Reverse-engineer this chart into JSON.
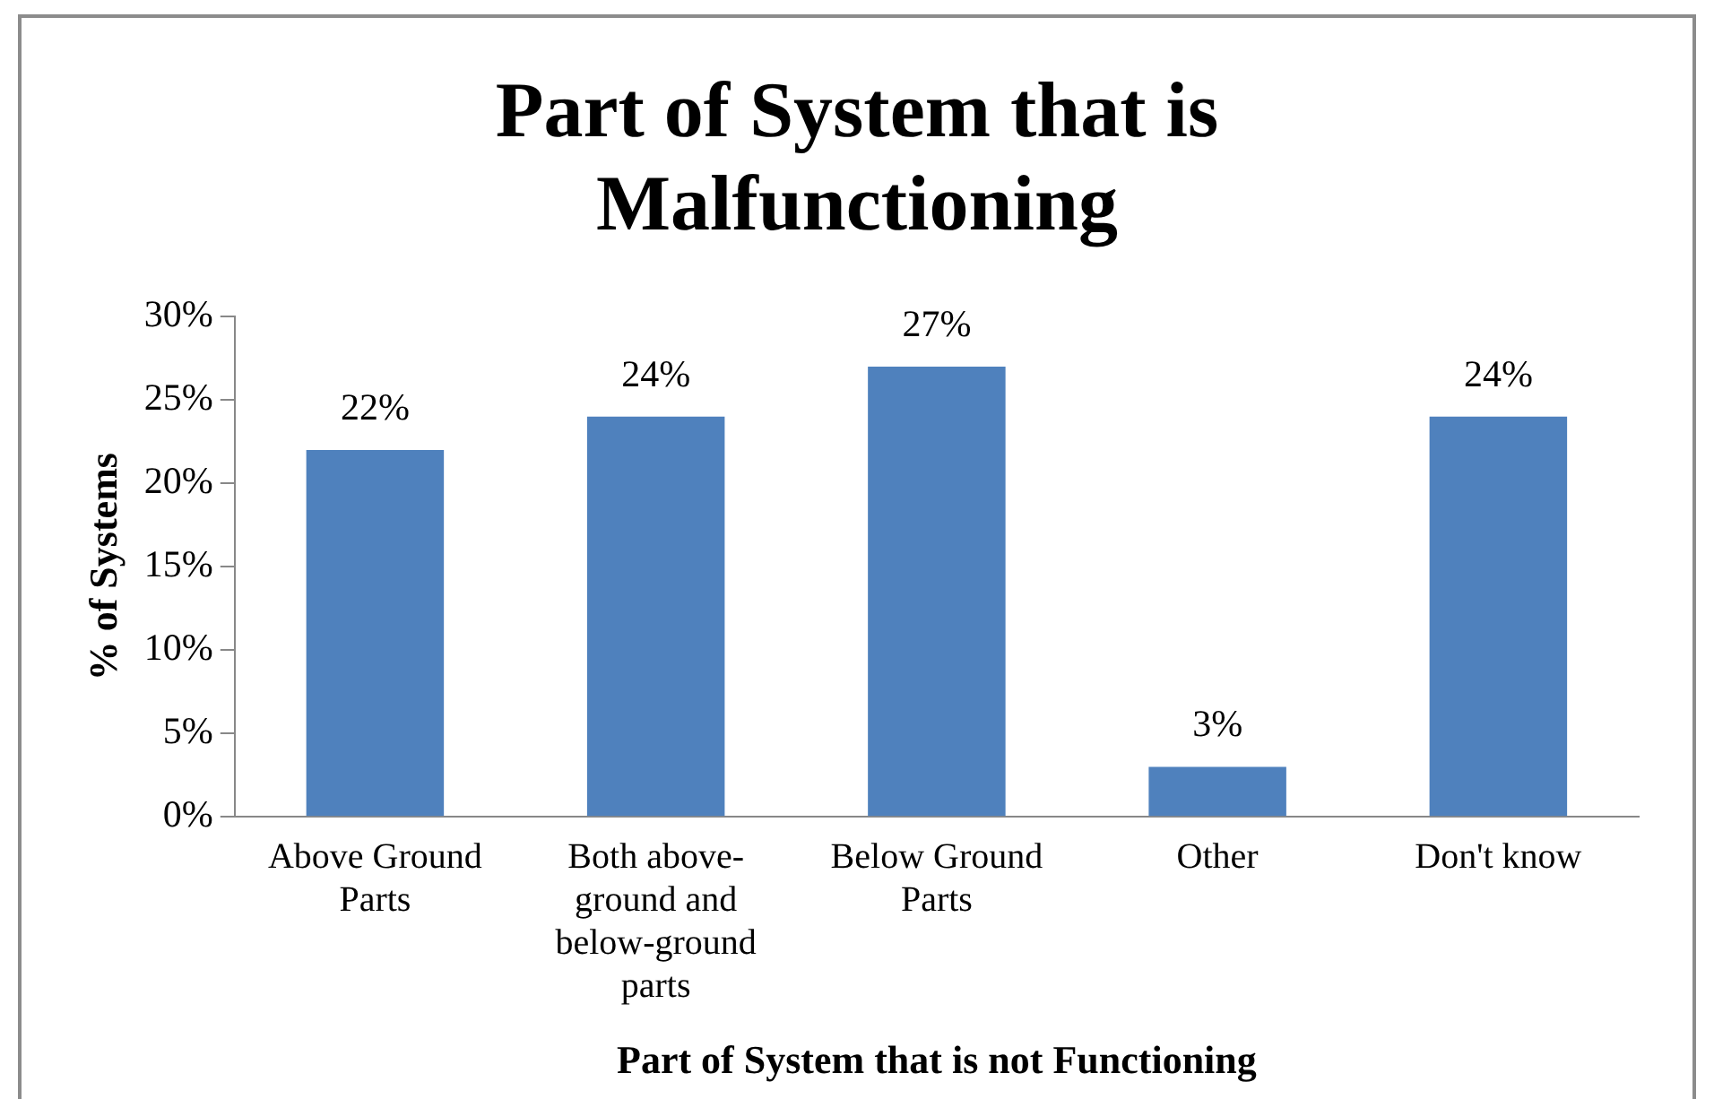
{
  "chart_data": {
    "type": "bar",
    "title": "Part of System that is Malfunctioning",
    "xlabel": "Part of System that is not Functioning",
    "ylabel": "% of Systems",
    "categories": [
      "Above Ground Parts",
      "Both above-ground and below-ground parts",
      "Below Ground Parts",
      "Other",
      "Don't know"
    ],
    "values": [
      22,
      24,
      27,
      3,
      24
    ],
    "color": "#4f81bd",
    "data_labels": true,
    "value_labels": [
      "22%",
      "24%",
      "27%",
      "3%",
      "24%"
    ],
    "ylim": [
      0,
      30
    ],
    "yticks": [
      {
        "value": 0,
        "label": "0%"
      },
      {
        "value": 5,
        "label": "5%"
      },
      {
        "value": 10,
        "label": "10%"
      },
      {
        "value": 15,
        "label": "15%"
      },
      {
        "value": 20,
        "label": "20%"
      },
      {
        "value": 25,
        "label": "25%"
      },
      {
        "value": 30,
        "label": "30%"
      }
    ],
    "grid": false,
    "legend": false
  }
}
